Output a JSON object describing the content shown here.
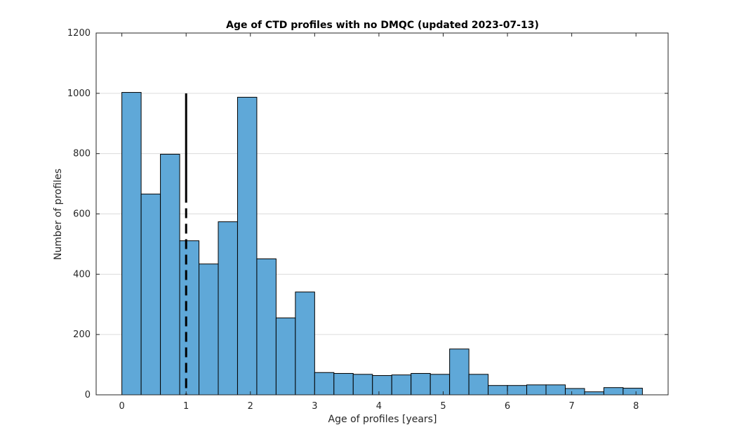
{
  "chart_data": {
    "type": "bar",
    "title": "Age of CTD profiles with no DMQC (updated 2023-07-13)",
    "xlabel": "Age of profiles [years]",
    "ylabel": "Number of profiles",
    "xlim": [
      -0.4,
      8.5
    ],
    "ylim": [
      0,
      1200
    ],
    "xticks": [
      0,
      1,
      2,
      3,
      4,
      5,
      6,
      7,
      8
    ],
    "yticks": [
      0,
      200,
      400,
      600,
      800,
      1000,
      1200
    ],
    "grid": true,
    "bin_edges": [
      0,
      0.3,
      0.6,
      0.9,
      1.2,
      1.5,
      1.8,
      2.1,
      2.4,
      2.7,
      3.0,
      3.3,
      3.6,
      3.9,
      4.2,
      4.5,
      4.8,
      5.1,
      5.4,
      5.7,
      6.0,
      6.3,
      6.6,
      6.9,
      7.2,
      7.5,
      7.8,
      8.1
    ],
    "values": [
      1003,
      666,
      798,
      511,
      434,
      574,
      987,
      451,
      255,
      341,
      74,
      71,
      68,
      64,
      66,
      71,
      68,
      152,
      68,
      31,
      31,
      33,
      33,
      21,
      10,
      24,
      22
    ],
    "bar_color": "#5fa8d8",
    "reference_line": {
      "x": 1,
      "y_top": 1000,
      "style": "solid-then-dashed",
      "color": "#000000"
    }
  }
}
